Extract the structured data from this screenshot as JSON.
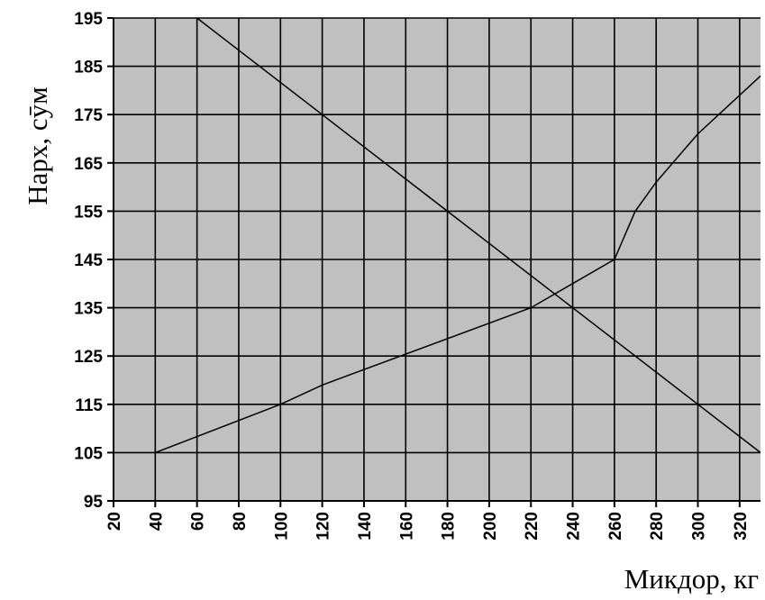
{
  "chart_data": {
    "type": "line",
    "title": "",
    "xlabel": "Микдор, кг",
    "ylabel": "Нарх, сӯм",
    "xlim": [
      20,
      330
    ],
    "ylim": [
      95,
      195
    ],
    "x_ticks": [
      "20",
      "40",
      "60",
      "80",
      "100",
      "120",
      "140",
      "160",
      "180",
      "200",
      "220",
      "240",
      "260",
      "280",
      "300",
      "320"
    ],
    "y_ticks": [
      "95",
      "105",
      "115",
      "125",
      "135",
      "145",
      "155",
      "165",
      "175",
      "185",
      "195"
    ],
    "grid": true,
    "background": "#c0c0c0",
    "line_color": "#000000",
    "series": [
      {
        "x": [
          60,
          330
        ],
        "y": [
          195,
          105
        ]
      },
      {
        "x": [
          40,
          100,
          120,
          220,
          260,
          270,
          280,
          300,
          330
        ],
        "y": [
          105,
          115,
          119,
          135,
          145,
          155,
          161,
          171,
          183
        ]
      }
    ]
  }
}
